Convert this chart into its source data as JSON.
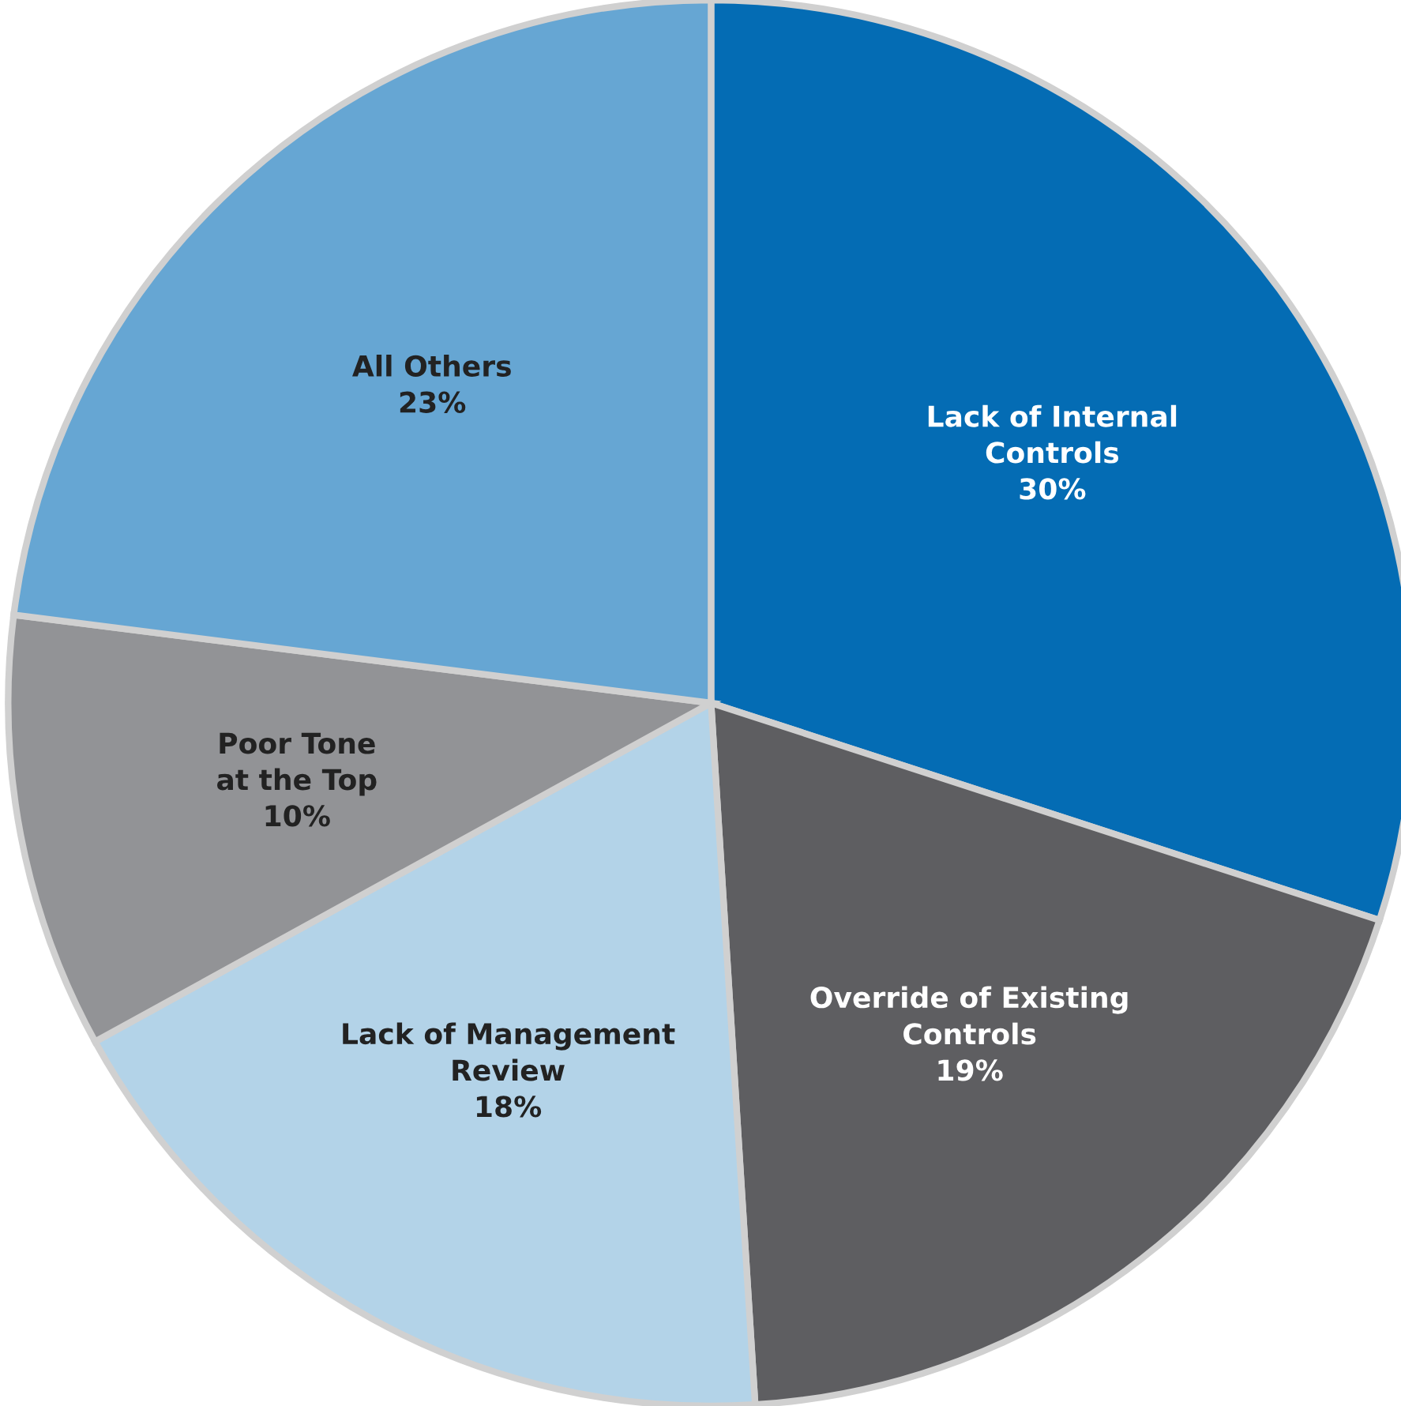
{
  "chart_data": {
    "type": "pie",
    "categories": [
      "Lack of Internal\nControls",
      "Override of Existing\nControls",
      "Lack of Management\nReview",
      "Poor Tone\nat the Top",
      "All Others"
    ],
    "values": [
      30,
      19,
      18,
      10,
      23
    ],
    "value_labels": [
      "30%",
      "19%",
      "18%",
      "10%",
      "23%"
    ],
    "colors": [
      "#046cb4",
      "#5e5e61",
      "#b3d3e8",
      "#929396",
      "#66a6d3"
    ],
    "legend": false
  }
}
